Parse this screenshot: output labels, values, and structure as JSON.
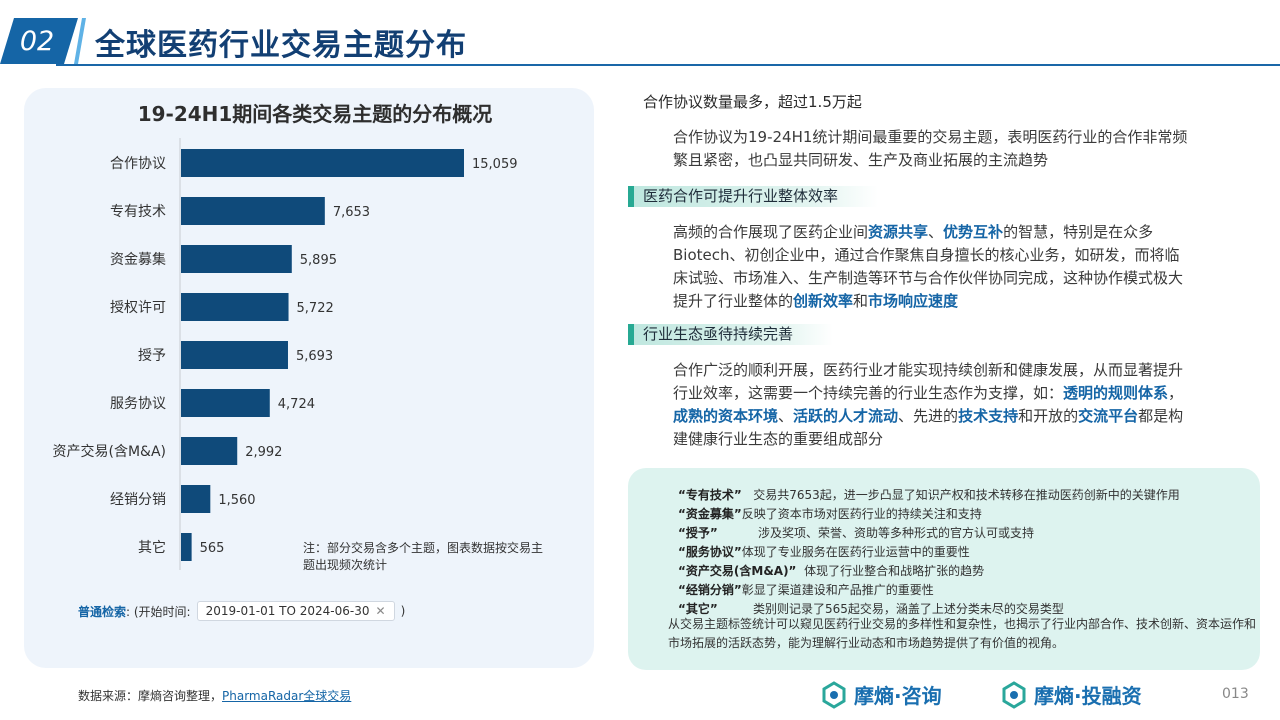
{
  "header": {
    "section_num": "02",
    "title": "全球医药行业交易主题分布"
  },
  "chart": {
    "title": "19-24H1期间各类交易主题的分布概况",
    "note": "注：部分交易含多个主题，图表数据按交易主题出现频次统计"
  },
  "chart_data": {
    "type": "bar",
    "orientation": "horizontal",
    "title": "19-24H1期间各类交易主题的分布概况",
    "categories": [
      "合作协议",
      "专有技术",
      "资金募集",
      "授权许可",
      "授予",
      "服务协议",
      "资产交易(含M&A)",
      "经销分销",
      "其它"
    ],
    "values": [
      15059,
      7653,
      5895,
      5722,
      5693,
      4724,
      2992,
      1560,
      565
    ],
    "value_labels": [
      "15,059",
      "7,653",
      "5,895",
      "5,722",
      "5,693",
      "4,724",
      "2,992",
      "1,560",
      "565"
    ],
    "xlim": [
      0,
      16000
    ],
    "color": "#0f4a7a",
    "grid": false,
    "legend": "none"
  },
  "search": {
    "label": "普通检索",
    "prefix": ": (开始时间:",
    "range": "2019-01-01 TO 2024-06-30",
    "suffix": ")"
  },
  "right": {
    "heading1": "合作协议数量最多，超过1.5万起",
    "para1": "合作协议为19-24H1统计期间最重要的交易主题，表明医药行业的合作非常频繁且紧密，也凸显共同研发、生产及商业拓展的主流趋势",
    "tag2": "医药合作可提升行业整体效率",
    "para2": {
      "t1": "高频的合作展现了医药企业间",
      "h1": "资源共享",
      "t2": "、",
      "h2": "优势互补",
      "t3": "的智慧，特别是在众多Biotech、初创企业中，通过合作聚焦自身擅长的核心业务，如研发，而将临床试验、市场准入、生产制造等环节与合作伙伴协同完成，这种协作模式极大提升了行业整体的",
      "h3": "创新效率",
      "t4": "和",
      "h4": "市场响应速度"
    },
    "tag3": "行业生态亟待持续完善",
    "para3": {
      "t1": "合作广泛的顺利开展，医药行业才能实现持续创新和健康发展，从而显著提升行业效率，这需要一个持续完善的行业生态作为支撑，如：",
      "h1": "透明的规则体系",
      "t2": "，",
      "h2": "成熟的资本环境",
      "t3": "、",
      "h3": "活跃的人才流动",
      "t4": "、先进的",
      "h4": "技术支持",
      "t5": "和开放的",
      "h5": "交流平台",
      "t6": "都是构建健康行业生态的重要组成部分"
    }
  },
  "notes": {
    "items": [
      {
        "key": "“专有技术”",
        "text": "交易共7653起，进一步凸显了知识产权和技术转移在推动医药创新中的关键作用"
      },
      {
        "key": "“资金募集”",
        "text": "反映了资本市场对医药行业的持续关注和支持"
      },
      {
        "key": "“授予”",
        "text": "涉及奖项、荣誉、资助等多种形式的官方认可或支持"
      },
      {
        "key": "“服务协议”",
        "text": "体现了专业服务在医药行业运营中的重要性"
      },
      {
        "key": "“资产交易(含M&A)”",
        "text": "体现了行业整合和战略扩张的趋势"
      },
      {
        "key": "“经销分销”",
        "text": "彰显了渠道建设和产品推广的重要性"
      },
      {
        "key": "“其它”",
        "text": "类别则记录了565起交易，涵盖了上述分类未尽的交易类型"
      }
    ],
    "summary": "从交易主题标签统计可以窥见医药行业交易的多样性和复杂性，也揭示了行业内部合作、技术创新、资本运作和市场拓展的活跃态势，能为理解行业动态和市场趋势提供了有价值的视角。"
  },
  "footer": {
    "source_prefix": "数据来源：摩熵咨询整理，",
    "source_link": "PharmaRadar全球交易",
    "logo1": "摩熵·咨询",
    "logo2": "摩熵·投融资",
    "page": "013"
  },
  "colors": {
    "primary": "#1565a6",
    "bar": "#0f4a7a",
    "teal": "#27a993",
    "note_bg": "#ddf3ef",
    "panel_bg": "#eef4fb"
  }
}
